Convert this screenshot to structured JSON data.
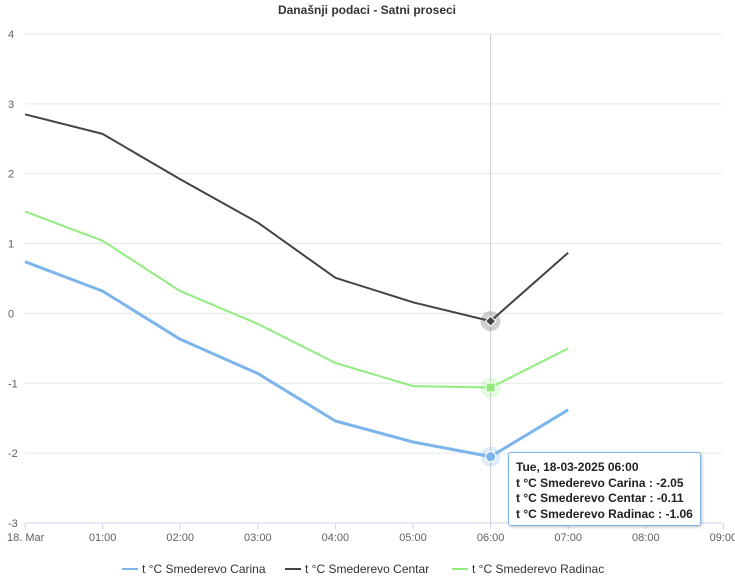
{
  "chart_data": {
    "type": "line",
    "title": "Današnji podaci - Satni proseci",
    "x_ticks": [
      "18. Mar",
      "01:00",
      "02:00",
      "03:00",
      "04:00",
      "05:00",
      "06:00",
      "07:00",
      "08:00",
      "09:00"
    ],
    "y_ticks": [
      "-3",
      "-2",
      "-1",
      "0",
      "1",
      "2",
      "3",
      "4"
    ],
    "ylim": [
      -3,
      4
    ],
    "grid": true,
    "legend_position": "bottom",
    "series": [
      {
        "name": "t °C Smederevo Carina",
        "color": "#7cb5ec",
        "values": [
          0.74,
          0.32,
          -0.37,
          -0.86,
          -1.54,
          -1.84,
          -2.05,
          -1.38
        ]
      },
      {
        "name": "t °C Smederevo Centar",
        "color": "#434348",
        "values": [
          2.85,
          2.57,
          1.92,
          1.3,
          0.51,
          0.16,
          -0.11,
          0.87
        ]
      },
      {
        "name": "t °C Smederevo Radinac",
        "color": "#90ed7d",
        "values": [
          1.46,
          1.04,
          0.32,
          -0.15,
          -0.71,
          -1.04,
          -1.06,
          -0.5
        ]
      }
    ],
    "highlight_index": 6,
    "tooltip": {
      "header": "Tue, 18-03-2025 06:00",
      "lines": [
        "t °C Smederevo Carina : -2.05",
        "t °C Smederevo Centar : -0.11",
        "t °C Smederevo Radinac : -1.06"
      ]
    }
  }
}
